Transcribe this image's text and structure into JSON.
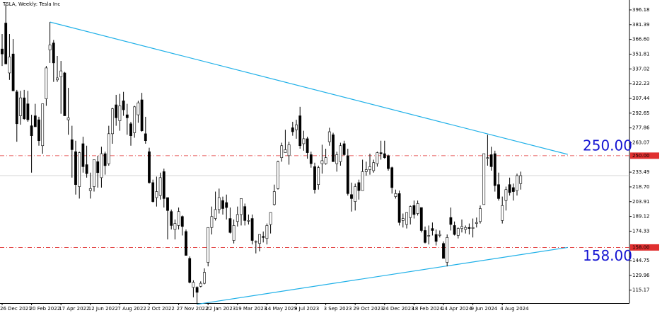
{
  "chart_data": {
    "type": "candlestick",
    "title": "TSLA, Weekly:  Tesla Inc",
    "ylim": [
      102.2,
      406.1
    ],
    "yticks": [
      396.18,
      381.39,
      {
        "value": 366.6,
        "label": "366.60"
      },
      351.81,
      337.02,
      322.23,
      307.44,
      292.65,
      277.86,
      263.07,
      233.49,
      {
        "value": 218.7,
        "label": "218.70"
      },
      203.91,
      189.12,
      174.33,
      144.75,
      129.96,
      115.17
    ],
    "categories": [
      "26 Dec 2021",
      null,
      null,
      null,
      null,
      null,
      null,
      null,
      "20 Feb 2022",
      null,
      null,
      null,
      null,
      null,
      null,
      null,
      "17 Apr 2022",
      null,
      null,
      null,
      null,
      null,
      null,
      null,
      "12 Jun 2022",
      null,
      null,
      null,
      null,
      null,
      null,
      null,
      "7 Aug 2022",
      null,
      null,
      null,
      null,
      null,
      null,
      null,
      "2 Oct 2022",
      null,
      null,
      null,
      null,
      null,
      null,
      null,
      "27 Nov 2022",
      null,
      null,
      null,
      null,
      null,
      null,
      null,
      "22 Jan 2023",
      null,
      null,
      null,
      null,
      null,
      null,
      null,
      "19 Mar 2023",
      null,
      null,
      null,
      null,
      null,
      null,
      null,
      "14 May 2023",
      null,
      null,
      null,
      null,
      null,
      null,
      null,
      "9 Jul 2023",
      null,
      null,
      null,
      null,
      null,
      null,
      null,
      "3 Sep 2023",
      null,
      null,
      null,
      null,
      null,
      null,
      null,
      "29 Oct 2023",
      null,
      null,
      null,
      null,
      null,
      null,
      null,
      "24 Dec 2023",
      null,
      null,
      null,
      null,
      null,
      null,
      null,
      "18 Feb 2024",
      null,
      null,
      null,
      null,
      null,
      null,
      null,
      "14 Apr 2024",
      null,
      null,
      null,
      null,
      null,
      null,
      null,
      "9 Jun 2024",
      null,
      null,
      null,
      null,
      null,
      null,
      null,
      "4 Aug 2024",
      null,
      null,
      null,
      null,
      null
    ],
    "ohlc": [
      [
        357,
        372,
        340,
        352
      ],
      [
        383,
        402,
        342,
        342
      ],
      [
        333,
        372,
        326,
        349
      ],
      [
        352,
        367,
        315,
        315
      ],
      [
        314,
        316,
        264,
        282
      ],
      [
        290,
        315,
        281,
        308
      ],
      [
        308,
        316,
        286,
        287
      ],
      [
        302,
        315,
        284,
        286
      ],
      [
        280,
        291,
        233,
        270
      ],
      [
        290,
        302,
        279,
        279
      ],
      [
        286,
        289,
        260,
        265
      ],
      [
        260,
        302,
        252,
        302
      ],
      [
        307,
        340,
        300,
        338
      ],
      [
        356,
        384,
        343,
        361
      ],
      [
        363,
        366,
        324,
        343
      ],
      [
        326,
        350,
        324,
        328
      ],
      [
        329,
        345,
        292,
        335
      ],
      [
        333,
        334,
        290,
        290
      ],
      [
        286,
        318,
        271,
        288
      ],
      [
        266,
        280,
        228,
        256
      ],
      [
        254,
        265,
        211,
        221
      ],
      [
        219,
        254,
        207,
        253
      ],
      [
        262,
        269,
        233,
        239
      ],
      [
        241,
        260,
        228,
        232
      ],
      [
        215,
        233,
        207,
        217
      ],
      [
        219,
        246,
        214,
        246
      ],
      [
        244,
        250,
        218,
        233
      ],
      [
        228,
        259,
        218,
        252
      ],
      [
        252,
        254,
        231,
        240
      ],
      [
        242,
        280,
        240,
        272
      ],
      [
        272,
        298,
        262,
        297
      ],
      [
        301,
        311,
        280,
        288
      ],
      [
        285,
        312,
        275,
        300
      ],
      [
        305,
        314,
        290,
        296
      ],
      [
        291,
        302,
        271,
        288
      ],
      [
        282,
        284,
        260,
        270
      ],
      [
        273,
        300,
        268,
        299
      ],
      [
        291,
        305,
        283,
        303
      ],
      [
        306,
        313,
        274,
        275
      ],
      [
        272,
        289,
        262,
        265
      ],
      [
        254,
        258,
        222,
        223
      ],
      [
        223,
        226,
        203,
        204
      ],
      [
        208,
        229,
        199,
        214
      ],
      [
        210,
        233,
        206,
        228
      ],
      [
        234,
        237,
        198,
        207
      ],
      [
        208,
        208,
        166,
        195
      ],
      [
        194,
        196,
        176,
        180
      ],
      [
        176,
        186,
        166,
        182
      ],
      [
        180,
        198,
        176,
        194
      ],
      [
        189,
        190,
        170,
        179
      ],
      [
        174,
        176,
        150,
        150
      ],
      [
        147,
        149,
        122,
        123
      ],
      [
        118,
        125,
        108,
        123
      ],
      [
        118,
        119,
        101,
        113
      ],
      [
        119,
        124,
        118,
        122
      ],
      [
        122,
        137,
        121,
        133
      ],
      [
        143,
        178,
        139,
        178
      ],
      [
        178,
        199,
        171,
        189
      ],
      [
        187,
        214,
        185,
        196
      ],
      [
        196,
        217,
        192,
        208
      ],
      [
        205,
        209,
        191,
        197
      ],
      [
        203,
        211,
        186,
        198
      ],
      [
        187,
        198,
        172,
        173
      ],
      [
        165,
        186,
        162,
        180
      ],
      [
        184,
        199,
        179,
        191
      ],
      [
        191,
        207,
        180,
        207
      ],
      [
        199,
        202,
        180,
        185
      ],
      [
        185,
        191,
        181,
        185
      ],
      [
        187,
        191,
        161,
        165
      ],
      [
        164,
        165,
        152,
        164
      ],
      [
        162,
        171,
        154,
        171
      ],
      [
        169,
        174,
        163,
        168
      ],
      [
        167,
        182,
        161,
        180
      ],
      [
        181,
        193,
        172,
        193
      ],
      [
        201,
        221,
        200,
        214
      ],
      [
        217,
        245,
        216,
        244
      ],
      [
        248,
        263,
        244,
        260
      ],
      [
        253,
        276,
        253,
        256
      ],
      [
        250,
        264,
        241,
        261
      ],
      [
        278,
        284,
        270,
        274
      ],
      [
        276,
        286,
        267,
        281
      ],
      [
        290,
        299,
        257,
        260
      ],
      [
        262,
        275,
        255,
        267
      ],
      [
        267,
        269,
        247,
        253
      ],
      [
        251,
        254,
        238,
        242
      ],
      [
        239,
        243,
        212,
        216
      ],
      [
        221,
        240,
        216,
        238
      ],
      [
        242,
        261,
        232,
        245
      ],
      [
        242,
        257,
        241,
        248
      ],
      [
        264,
        278,
        260,
        274
      ],
      [
        271,
        273,
        244,
        244
      ],
      [
        242,
        254,
        234,
        251
      ],
      [
        244,
        263,
        240,
        260
      ],
      [
        262,
        265,
        250,
        251
      ],
      [
        250,
        257,
        210,
        212
      ],
      [
        211,
        223,
        194,
        207
      ],
      [
        204,
        222,
        195,
        219
      ],
      [
        223,
        226,
        206,
        215
      ],
      [
        215,
        246,
        215,
        234
      ],
      [
        234,
        244,
        230,
        236
      ],
      [
        236,
        252,
        231,
        239
      ],
      [
        235,
        246,
        233,
        243
      ],
      [
        242,
        254,
        239,
        253
      ],
      [
        253,
        265,
        246,
        252
      ],
      [
        252,
        265,
        247,
        248
      ],
      [
        250,
        251,
        235,
        237
      ],
      [
        238,
        239,
        212,
        218
      ],
      [
        209,
        216,
        207,
        212
      ],
      [
        212,
        215,
        180,
        183
      ],
      [
        185,
        192,
        178,
        187
      ],
      [
        181,
        193,
        177,
        193
      ],
      [
        188,
        200,
        181,
        199
      ],
      [
        200,
        205,
        187,
        191
      ],
      [
        192,
        205,
        190,
        202
      ],
      [
        198,
        198,
        173,
        175
      ],
      [
        175,
        179,
        162,
        163
      ],
      [
        170,
        180,
        161,
        170
      ],
      [
        177,
        183,
        170,
        175
      ],
      [
        171,
        176,
        160,
        164
      ],
      [
        170,
        175,
        168,
        171
      ],
      [
        162,
        164,
        147,
        147
      ],
      [
        143,
        171,
        139,
        168
      ],
      [
        188,
        198,
        175,
        181
      ],
      [
        180,
        184,
        170,
        171
      ],
      [
        170,
        178,
        167,
        177
      ],
      [
        177,
        186,
        173,
        179
      ],
      [
        176,
        180,
        172,
        178
      ],
      [
        178,
        182,
        171,
        177
      ],
      [
        177,
        187,
        168,
        178
      ],
      [
        182,
        188,
        178,
        183
      ],
      [
        184,
        200,
        182,
        197
      ],
      [
        201,
        252,
        201,
        252
      ],
      [
        248,
        271,
        240,
        248
      ],
      [
        251,
        259,
        235,
        239
      ],
      [
        252,
        255,
        214,
        220
      ],
      [
        221,
        233,
        205,
        207
      ],
      [
        185,
        209,
        182,
        200
      ],
      [
        205,
        219,
        195,
        216
      ],
      [
        221,
        228,
        210,
        213
      ],
      [
        218,
        222,
        205,
        214
      ],
      [
        215,
        232,
        210,
        230
      ],
      [
        222,
        234,
        216,
        230
      ]
    ],
    "hlines": [
      {
        "value": 250,
        "label": "250.00",
        "annotation": "250.00",
        "color": "#e03030"
      },
      {
        "value": 158,
        "label": "158.00",
        "annotation": "158.00",
        "color": "#e03030"
      }
    ],
    "trendlines": [
      {
        "points": [
          [
            13,
            384
          ],
          [
            153.8,
            251.3
          ]
        ],
        "color": "#1fb0e8"
      },
      {
        "points": [
          [
            53,
            101
          ],
          [
            153.8,
            158
          ]
        ],
        "color": "#1fb0e8"
      }
    ],
    "up_color": "#ffffff",
    "down_color": "#000000"
  }
}
